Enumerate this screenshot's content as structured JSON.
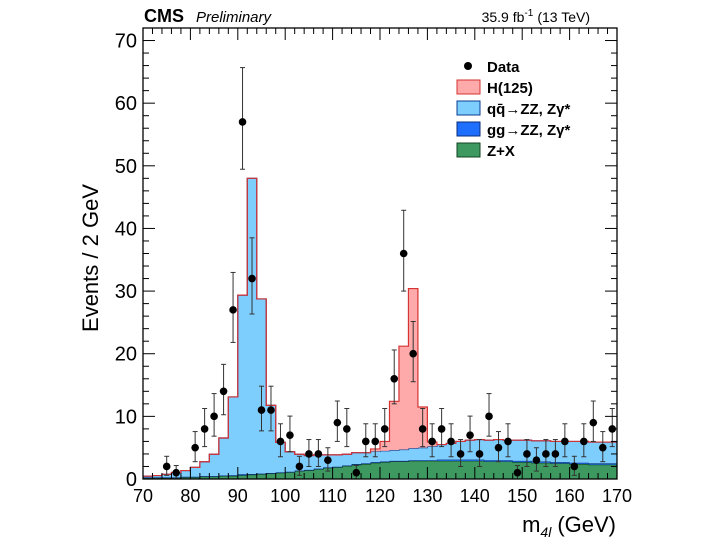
{
  "header": {
    "experiment": "CMS",
    "status": "Preliminary",
    "lumi": "35.9 fb",
    "lumi_sup": "-1",
    "energy": "(13 TeV)"
  },
  "chart_data": {
    "type": "bar",
    "xlabel": "m",
    "xlabel_sub": "4l",
    "xlabel_unit": "(GeV)",
    "ylabel": "Events / 2 GeV",
    "xlim": [
      70,
      170
    ],
    "ylim": [
      0,
      72
    ],
    "x_ticks": [
      "70",
      "80",
      "90",
      "100",
      "110",
      "120",
      "130",
      "140",
      "150",
      "160",
      "170"
    ],
    "y_ticks": [
      "0",
      "10",
      "20",
      "30",
      "40",
      "50",
      "60",
      "70"
    ],
    "bin_width": 2,
    "bin_low_edges": [
      70,
      72,
      74,
      76,
      78,
      80,
      82,
      84,
      86,
      88,
      90,
      92,
      94,
      96,
      98,
      100,
      102,
      104,
      106,
      108,
      110,
      112,
      114,
      116,
      118,
      120,
      122,
      124,
      126,
      128,
      130,
      132,
      134,
      136,
      138,
      140,
      142,
      144,
      146,
      148,
      150,
      152,
      154,
      156,
      158,
      160,
      162,
      164,
      166,
      168
    ],
    "legend": {
      "placement": "top-right",
      "entries": [
        {
          "label": "Data",
          "type": "marker"
        },
        {
          "label": "H(125)",
          "type": "fill",
          "color": "#ffaaaa",
          "edge": "#d63333"
        },
        {
          "label": "qq̄→ZZ, Zγ*",
          "type": "fill",
          "color": "#7dcdfd",
          "edge": "#0a3d91"
        },
        {
          "label": "gg→ZZ, Zγ*",
          "type": "fill",
          "color": "#1f6fff",
          "edge": "#0a2e7a"
        },
        {
          "label": "Z+X",
          "type": "fill",
          "color": "#3d9960",
          "edge": "#114422"
        }
      ]
    },
    "series": [
      {
        "name": "Z+X",
        "color": "#3d9960",
        "values": [
          0.2,
          0.2,
          0.2,
          0.2,
          0.3,
          0.3,
          0.4,
          0.4,
          0.5,
          0.5,
          0.6,
          0.7,
          0.8,
          0.9,
          1.0,
          1.1,
          1.3,
          1.4,
          1.6,
          1.8,
          1.9,
          2.1,
          2.3,
          2.4,
          2.6,
          2.7,
          2.8,
          2.8,
          2.9,
          2.9,
          2.9,
          2.9,
          2.9,
          2.9,
          2.9,
          2.9,
          2.8,
          2.8,
          2.8,
          2.7,
          2.7,
          2.6,
          2.6,
          2.5,
          2.5,
          2.4,
          2.4,
          2.3,
          2.3,
          2.3
        ]
      },
      {
        "name": "gg→ZZ, Zγ*",
        "color": "#1f6fff",
        "values": [
          0.05,
          0.05,
          0.05,
          0.05,
          0.05,
          0.05,
          0.05,
          0.05,
          0.05,
          0.1,
          0.15,
          0.1,
          0.05,
          0.05,
          0.05,
          0.05,
          0.05,
          0.05,
          0.05,
          0.05,
          0.05,
          0.05,
          0.1,
          0.1,
          0.1,
          0.1,
          0.1,
          0.1,
          0.1,
          0.1,
          0.1,
          0.2,
          0.2,
          0.2,
          0.2,
          0.2,
          0.2,
          0.2,
          0.2,
          0.2,
          0.2,
          0.2,
          0.2,
          0.2,
          0.2,
          0.2,
          0.2,
          0.2,
          0.2,
          0.2
        ]
      },
      {
        "name": "qq̄→ZZ, Zγ*",
        "color": "#7dcdfd",
        "values": [
          0.2,
          0.3,
          0.5,
          0.8,
          1.0,
          1.5,
          2.3,
          3.5,
          6.0,
          12.5,
          28.6,
          47.2,
          27.9,
          10.8,
          4.8,
          3.2,
          2.6,
          2.3,
          2.2,
          2.0,
          1.9,
          1.8,
          1.8,
          1.7,
          1.7,
          1.7,
          1.7,
          1.8,
          1.9,
          2.0,
          2.2,
          2.4,
          2.6,
          2.9,
          3.1,
          3.2,
          3.2,
          3.3,
          3.2,
          3.3,
          3.3,
          3.3,
          3.3,
          3.3,
          3.3,
          3.4,
          3.4,
          3.4,
          3.4,
          3.4
        ]
      },
      {
        "name": "H(125)",
        "color": "#ffaaaa",
        "values": [
          0,
          0,
          0,
          0,
          0,
          0,
          0,
          0,
          0,
          0,
          0,
          0,
          0,
          0,
          0,
          0,
          0,
          0,
          0,
          0,
          0,
          0,
          0,
          0,
          0.4,
          1.5,
          7.8,
          16.5,
          25.5,
          6.5,
          0.7,
          0,
          0,
          0,
          0,
          0,
          0,
          0,
          0,
          0,
          0,
          0,
          0,
          0,
          0,
          0,
          0,
          0,
          0,
          0
        ]
      }
    ],
    "data_points": [
      {
        "x": 75,
        "y": 2
      },
      {
        "x": 77,
        "y": 1
      },
      {
        "x": 81,
        "y": 5
      },
      {
        "x": 83,
        "y": 8
      },
      {
        "x": 85,
        "y": 10
      },
      {
        "x": 87,
        "y": 14
      },
      {
        "x": 89,
        "y": 27
      },
      {
        "x": 91,
        "y": 57
      },
      {
        "x": 93,
        "y": 32
      },
      {
        "x": 95,
        "y": 11
      },
      {
        "x": 97,
        "y": 11
      },
      {
        "x": 99,
        "y": 6
      },
      {
        "x": 101,
        "y": 7
      },
      {
        "x": 103,
        "y": 2
      },
      {
        "x": 105,
        "y": 4
      },
      {
        "x": 107,
        "y": 4
      },
      {
        "x": 109,
        "y": 3
      },
      {
        "x": 111,
        "y": 9
      },
      {
        "x": 113,
        "y": 8
      },
      {
        "x": 115,
        "y": 1
      },
      {
        "x": 117,
        "y": 6
      },
      {
        "x": 119,
        "y": 6
      },
      {
        "x": 121,
        "y": 8
      },
      {
        "x": 123,
        "y": 16
      },
      {
        "x": 125,
        "y": 36
      },
      {
        "x": 127,
        "y": 20
      },
      {
        "x": 129,
        "y": 8
      },
      {
        "x": 131,
        "y": 6
      },
      {
        "x": 133,
        "y": 8
      },
      {
        "x": 135,
        "y": 6
      },
      {
        "x": 137,
        "y": 4
      },
      {
        "x": 139,
        "y": 7
      },
      {
        "x": 141,
        "y": 4
      },
      {
        "x": 143,
        "y": 10
      },
      {
        "x": 145,
        "y": 5
      },
      {
        "x": 147,
        "y": 6
      },
      {
        "x": 149,
        "y": 1
      },
      {
        "x": 151,
        "y": 4
      },
      {
        "x": 153,
        "y": 3
      },
      {
        "x": 155,
        "y": 4
      },
      {
        "x": 157,
        "y": 4
      },
      {
        "x": 159,
        "y": 6
      },
      {
        "x": 161,
        "y": 2
      },
      {
        "x": 163,
        "y": 6
      },
      {
        "x": 165,
        "y": 9
      },
      {
        "x": 167,
        "y": 5
      },
      {
        "x": 169,
        "y": 8
      }
    ]
  }
}
